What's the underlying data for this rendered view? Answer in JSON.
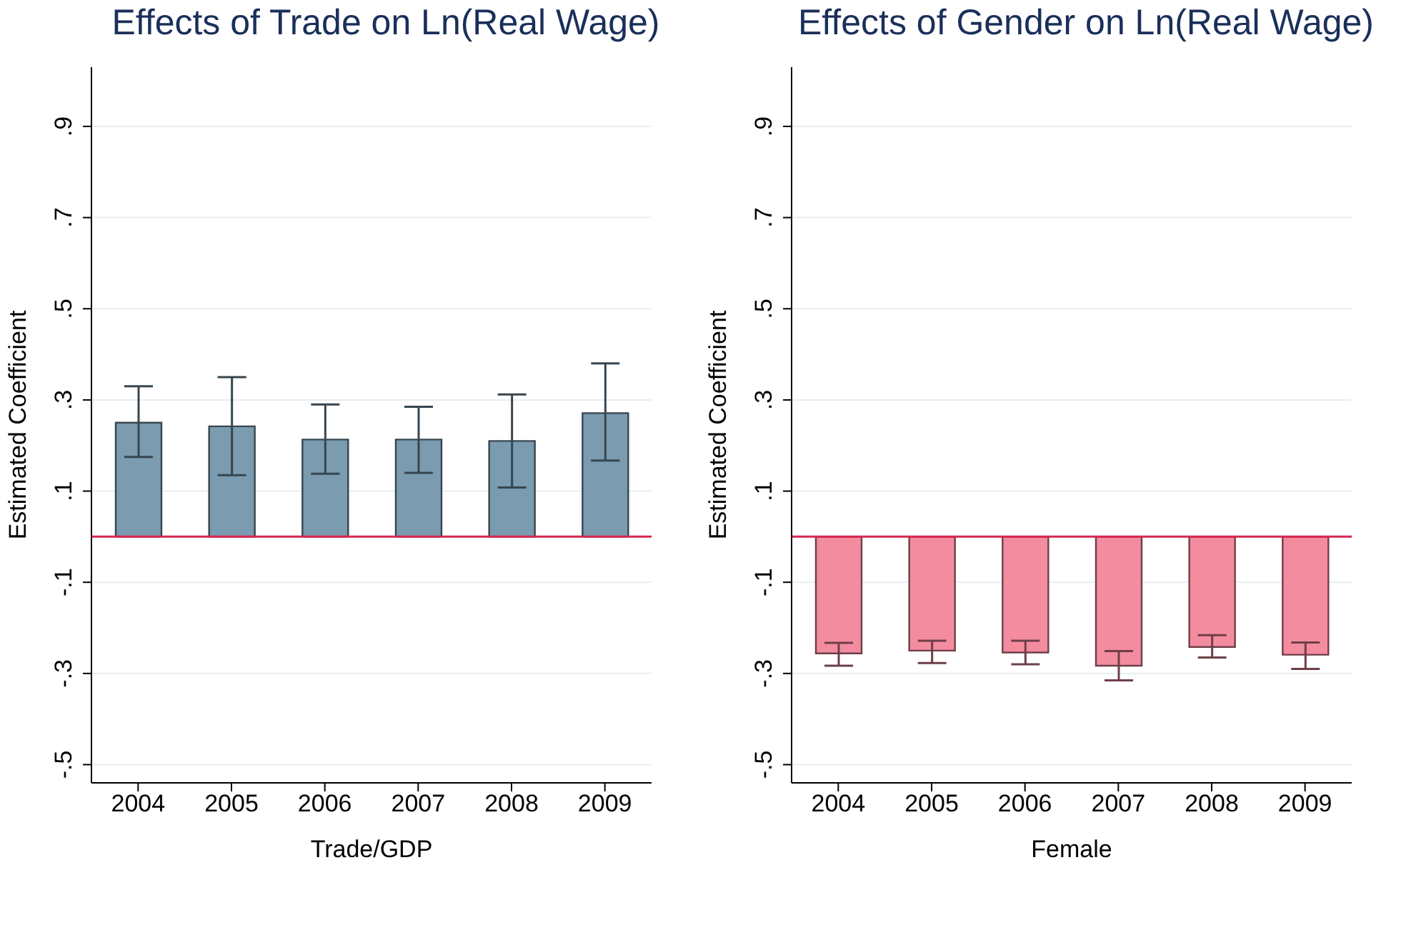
{
  "chart_data": [
    {
      "type": "bar",
      "title": "Effects of Trade on Ln(Real Wage)",
      "xlabel": "Trade/GDP",
      "ylabel": "Estimated Coefficient",
      "categories": [
        "2004",
        "2005",
        "2006",
        "2007",
        "2008",
        "2009"
      ],
      "series": [
        {
          "color": "#7a9bb0",
          "values": [
            0.25,
            0.242,
            0.213,
            0.213,
            0.21,
            0.271
          ],
          "errors": [
            [
              0.175,
              0.33
            ],
            [
              0.135,
              0.35
            ],
            [
              0.138,
              0.29
            ],
            [
              0.14,
              0.285
            ],
            [
              0.108,
              0.312
            ],
            [
              0.167,
              0.38
            ]
          ]
        }
      ],
      "ylim": [
        -0.54,
        1.03
      ],
      "yticks": [
        {
          "value": -0.5,
          "label": "-.5"
        },
        {
          "value": -0.3,
          "label": "-.3"
        },
        {
          "value": -0.1,
          "label": "-.1"
        },
        {
          "value": 0.1,
          "label": ".1"
        },
        {
          "value": 0.3,
          "label": ".3"
        },
        {
          "value": 0.5,
          "label": ".5"
        },
        {
          "value": 0.7,
          "label": ".7"
        },
        {
          "value": 0.9,
          "label": ".9"
        }
      ],
      "grid": "y",
      "ref_lines": [
        {
          "axis": "y",
          "value": 0,
          "color": "#d9264f"
        }
      ]
    },
    {
      "type": "bar",
      "title": "Effects of Gender on Ln(Real Wage)",
      "xlabel": "Female",
      "ylabel": "Estimated Coefficient",
      "categories": [
        "2004",
        "2005",
        "2006",
        "2007",
        "2008",
        "2009"
      ],
      "series": [
        {
          "color": "#f48ca0",
          "values": [
            -0.256,
            -0.25,
            -0.254,
            -0.283,
            -0.242,
            -0.259
          ],
          "errors": [
            [
              -0.283,
              -0.233
            ],
            [
              -0.277,
              -0.228
            ],
            [
              -0.28,
              -0.228
            ],
            [
              -0.315,
              -0.251
            ],
            [
              -0.265,
              -0.216
            ],
            [
              -0.29,
              -0.232
            ]
          ]
        }
      ],
      "ylim": [
        -0.54,
        1.03
      ],
      "yticks": [
        {
          "value": -0.5,
          "label": "-.5"
        },
        {
          "value": -0.3,
          "label": "-.3"
        },
        {
          "value": -0.1,
          "label": "-.1"
        },
        {
          "value": 0.1,
          "label": ".1"
        },
        {
          "value": 0.3,
          "label": ".3"
        },
        {
          "value": 0.5,
          "label": ".5"
        },
        {
          "value": 0.7,
          "label": ".7"
        },
        {
          "value": 0.9,
          "label": ".9"
        }
      ],
      "grid": "y",
      "ref_lines": [
        {
          "axis": "y",
          "value": 0,
          "color": "#d9264f"
        }
      ]
    }
  ]
}
